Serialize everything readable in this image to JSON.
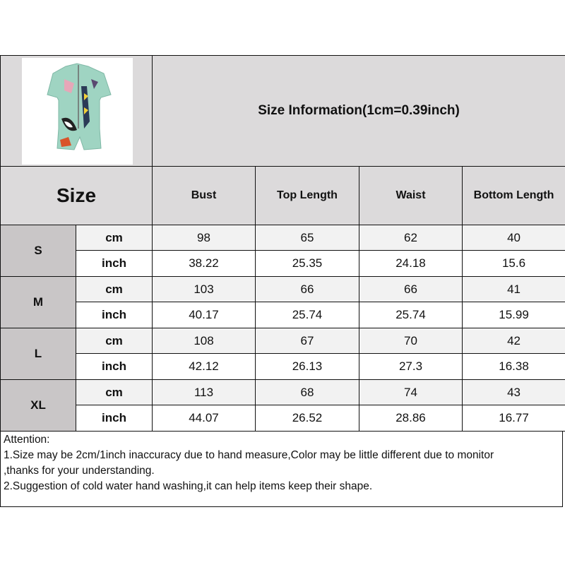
{
  "header": {
    "title": "Size Information(1cm=0.39inch)"
  },
  "columns": {
    "size": "Size",
    "measures": [
      "Bust",
      "Top Length",
      "Waist",
      "Bottom Length"
    ]
  },
  "rows": [
    {
      "size": "S",
      "cm_label": "cm",
      "inch_label": "inch",
      "cm": [
        "98",
        "65",
        "62",
        "40"
      ],
      "inch": [
        "38.22",
        "25.35",
        "24.18",
        "15.6"
      ]
    },
    {
      "size": "M",
      "cm_label": "cm",
      "inch_label": "inch",
      "cm": [
        "103",
        "66",
        "66",
        "41"
      ],
      "inch": [
        "40.17",
        "25.74",
        "25.74",
        "15.99"
      ]
    },
    {
      "size": "L",
      "cm_label": "cm",
      "inch_label": "inch",
      "cm": [
        "108",
        "67",
        "70",
        "42"
      ],
      "inch": [
        "42.12",
        "26.13",
        "27.3",
        "16.38"
      ]
    },
    {
      "size": "XL",
      "cm_label": "cm",
      "inch_label": "inch",
      "cm": [
        "113",
        "68",
        "74",
        "43"
      ],
      "inch": [
        "44.07",
        "26.52",
        "28.86",
        "16.77"
      ]
    }
  ],
  "notes": {
    "heading": "Attention:",
    "line1": "1.Size may be 2cm/1inch inaccuracy due to hand measure,Color may be little different due to monitor",
    "line1b": ",thanks for your understanding.",
    "line2": "2.Suggestion of cold water hand washing,it can help items keep their shape."
  },
  "colors": {
    "header_bg": "#dcdadb",
    "size_bg": "#c9c6c7",
    "cm_row_bg": "#f2f2f2",
    "product_mint": "#9fd4c2"
  }
}
